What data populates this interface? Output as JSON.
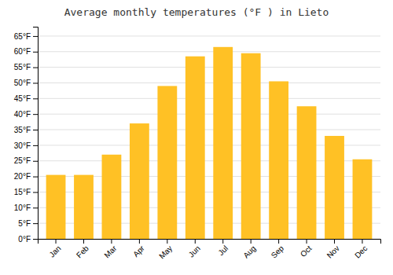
{
  "chart_data": {
    "type": "bar",
    "title": "Average monthly temperatures (°F ) in Lieto",
    "categories": [
      "Jan",
      "Feb",
      "Mar",
      "Apr",
      "May",
      "Jun",
      "Jul",
      "Aug",
      "Sep",
      "Oct",
      "Nov",
      "Dec"
    ],
    "values": [
      20.5,
      20.5,
      27,
      37,
      49,
      58.5,
      61.5,
      59.5,
      50.5,
      42.5,
      33,
      25.5
    ],
    "color": "#FFC125",
    "ylim": [
      0,
      68
    ],
    "yticks": [
      {
        "value": 0,
        "label": "0°F"
      },
      {
        "value": 5,
        "label": "5°F"
      },
      {
        "value": 10,
        "label": "10°F"
      },
      {
        "value": 15,
        "label": "15°F"
      },
      {
        "value": 20,
        "label": "20°F"
      },
      {
        "value": 25,
        "label": "25°F"
      },
      {
        "value": 30,
        "label": "30°F"
      },
      {
        "value": 35,
        "label": "35°F"
      },
      {
        "value": 40,
        "label": "40°F"
      },
      {
        "value": 45,
        "label": "45°F"
      },
      {
        "value": 50,
        "label": "50°F"
      },
      {
        "value": 55,
        "label": "55°F"
      },
      {
        "value": 60,
        "label": "60°F"
      },
      {
        "value": 65,
        "label": "65°F"
      }
    ],
    "grid": true
  }
}
